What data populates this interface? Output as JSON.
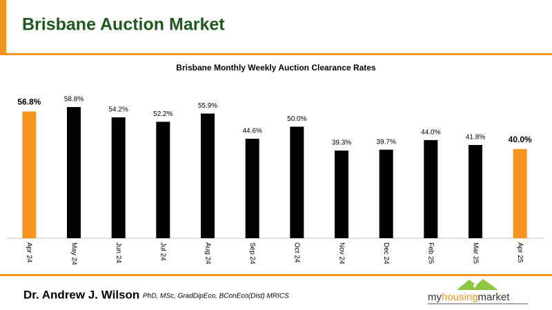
{
  "header": {
    "title": "Brisbane Auction Market"
  },
  "chart_data": {
    "type": "bar",
    "title": "Brisbane Monthly Weekly Auction Clearance Rates",
    "categories": [
      "Apr 24",
      "May 24",
      "Jun 24",
      "Jul 24",
      "Aug 24",
      "Sep 24",
      "Oct 24",
      "Nov 24",
      "Dec 24",
      "Feb 25",
      "Mar 25",
      "Apr 25"
    ],
    "values": [
      56.8,
      58.8,
      54.2,
      52.2,
      55.9,
      44.6,
      50.0,
      39.3,
      39.7,
      44.0,
      41.8,
      40.0
    ],
    "value_labels": [
      "56.8%",
      "58.8%",
      "54.2%",
      "52.2%",
      "55.9%",
      "44.6%",
      "50.0%",
      "39.3%",
      "39.7%",
      "44.0%",
      "41.8%",
      "40.0%"
    ],
    "color": "#000000",
    "highlight_color": "#f7941d",
    "highlighted": [
      true,
      false,
      false,
      false,
      false,
      false,
      false,
      false,
      false,
      false,
      false,
      true
    ]
  },
  "footer": {
    "author": "Dr. Andrew J. Wilson",
    "credentials": "PhD, MSc, GradDipEco, BConEco(Dist) MRICS",
    "logo_prefix": "my",
    "logo_mid": "housing",
    "logo_suffix": "market"
  }
}
